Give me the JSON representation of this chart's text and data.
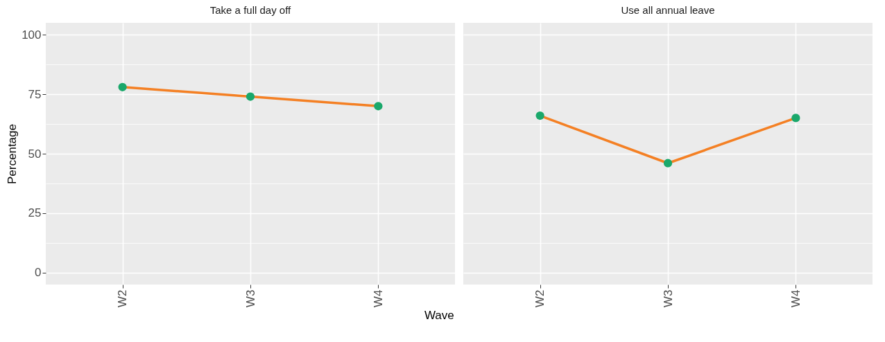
{
  "chart_data": [
    {
      "type": "line",
      "title": "Take a full day off",
      "xlabel": "Wave",
      "ylabel": "Percentage",
      "categories": [
        "W2",
        "W3",
        "W4"
      ],
      "series": [
        {
          "color": "#f48024",
          "colors": [
            "#1aa86b",
            "#1aa86b",
            "#1aa86b"
          ],
          "values": [
            78,
            74,
            70
          ]
        }
      ],
      "ylim": [
        -5,
        105
      ],
      "yticks": [
        0,
        {
          "value": 12.5,
          "label": null
        },
        25,
        {
          "value": 37.5,
          "label": null
        },
        50,
        {
          "value": 62.5,
          "label": null
        },
        75,
        {
          "value": 87.5,
          "label": null
        },
        100
      ],
      "grid": true,
      "marker": "circle",
      "line_style": "solid"
    },
    {
      "type": "line",
      "title": "Use all annual leave",
      "categories": [
        "W2",
        "W3",
        "W4"
      ],
      "series": [
        {
          "color": "#f48024",
          "colors": [
            "#1aa86b",
            "#1aa86b",
            "#1aa86b"
          ],
          "values": [
            66,
            46,
            65
          ]
        }
      ],
      "ylim": [
        -5,
        105
      ],
      "yticks": [
        0,
        {
          "value": 12.5,
          "label": null
        },
        25,
        {
          "value": 37.5,
          "label": null
        },
        50,
        {
          "value": 62.5,
          "label": null
        },
        75,
        {
          "value": 87.5,
          "label": null
        },
        100
      ],
      "grid": true,
      "marker": "circle",
      "line_style": "solid",
      "tick_labels": "x"
    }
  ]
}
